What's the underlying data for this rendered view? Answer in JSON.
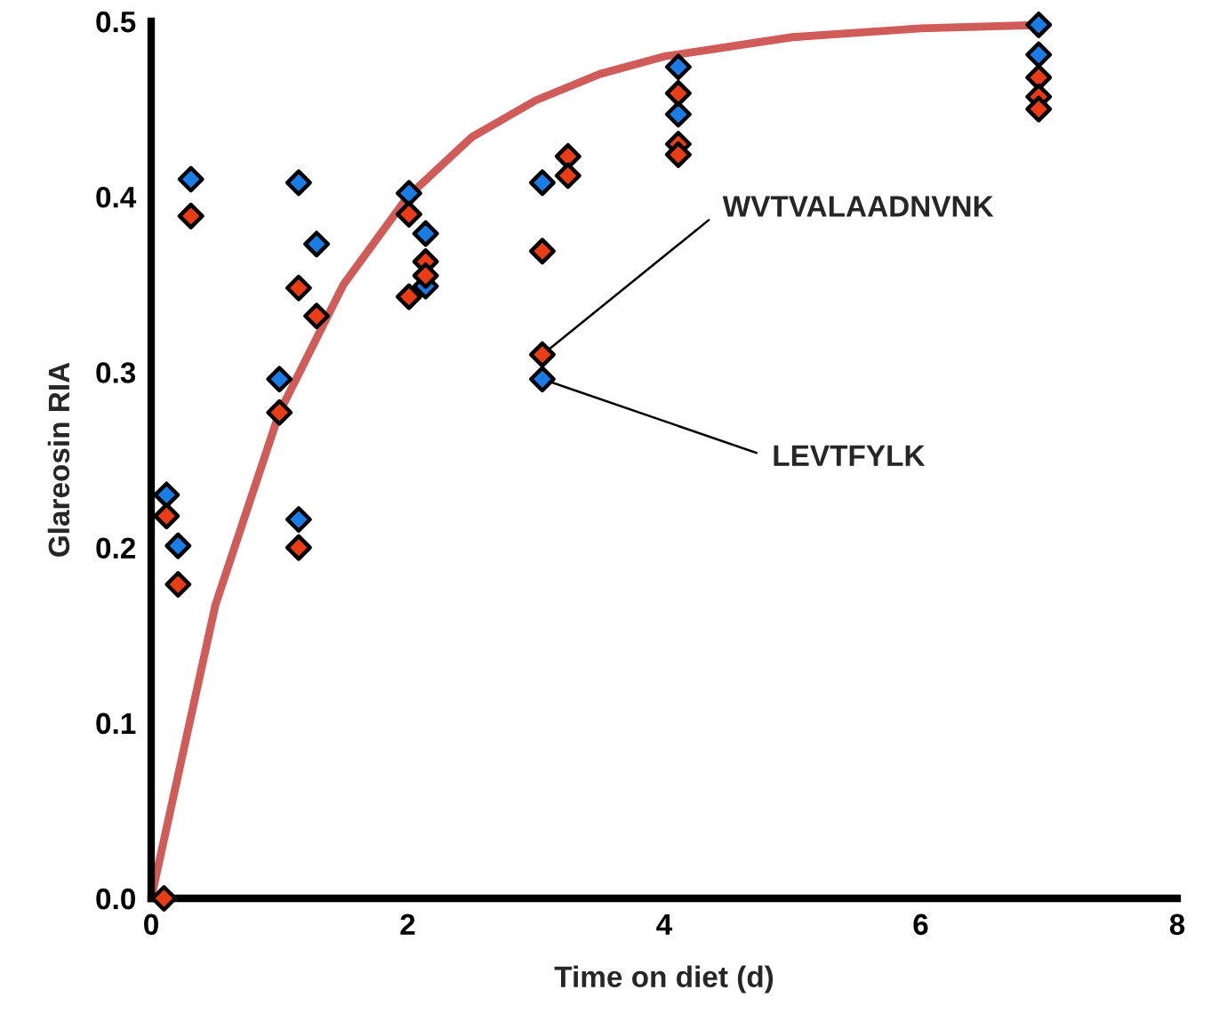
{
  "chart_data": {
    "type": "scatter",
    "xlabel": "Time on diet (d)",
    "ylabel": "Glareosin RIA",
    "xlim": [
      0,
      8
    ],
    "ylim": [
      0,
      0.5
    ],
    "xticks": [
      0,
      2,
      4,
      6,
      8
    ],
    "yticks": [
      {
        "value": 0,
        "label": "0.0"
      },
      0.1,
      0.2,
      0.3,
      0.4,
      0.5
    ],
    "grid": false,
    "legend": false,
    "marker": "diamond",
    "series": [
      {
        "color": "#1a7de6",
        "x": [
          0.12,
          0.21,
          0.31,
          1.0,
          1.15,
          1.29,
          1.15,
          2.01,
          2.14,
          2.14,
          3.05,
          3.05,
          4.11,
          4.11,
          6.92,
          6.92
        ],
        "values": [
          0.23,
          0.201,
          0.41,
          0.296,
          0.408,
          0.373,
          0.216,
          0.402,
          0.379,
          0.349,
          0.408,
          0.296,
          0.474,
          0.447,
          0.498,
          0.481
        ]
      },
      {
        "color": "#ea3d15",
        "x": [
          0.1,
          0.12,
          0.21,
          0.31,
          1.0,
          1.15,
          1.29,
          1.15,
          2.01,
          2.14,
          2.14,
          2.01,
          3.05,
          3.05,
          3.25,
          3.25,
          4.11,
          4.11,
          4.11,
          6.92,
          6.92,
          6.92
        ],
        "values": [
          0.0,
          0.218,
          0.179,
          0.389,
          0.277,
          0.348,
          0.332,
          0.2,
          0.39,
          0.363,
          0.355,
          0.343,
          0.369,
          0.31,
          0.423,
          0.412,
          0.459,
          0.43,
          0.424,
          0.468,
          0.457,
          0.45
        ]
      },
      {
        "type": "line",
        "color": "#cf5c58",
        "marker": "none",
        "x": [
          0,
          0.5,
          1,
          1.5,
          2,
          2.5,
          3,
          3.5,
          4,
          5,
          6,
          6.95
        ],
        "values": [
          0,
          0.167,
          0.277,
          0.35,
          0.4,
          0.434,
          0.455,
          0.47,
          0.48,
          0.491,
          0.496,
          0.498
        ]
      }
    ],
    "annotations": [
      {
        "text": "WVTVALAADNVNK",
        "x": 3.05,
        "y": 0.31
      },
      {
        "text": "LEVTFYLK",
        "x": 3.05,
        "y": 0.296
      }
    ]
  }
}
